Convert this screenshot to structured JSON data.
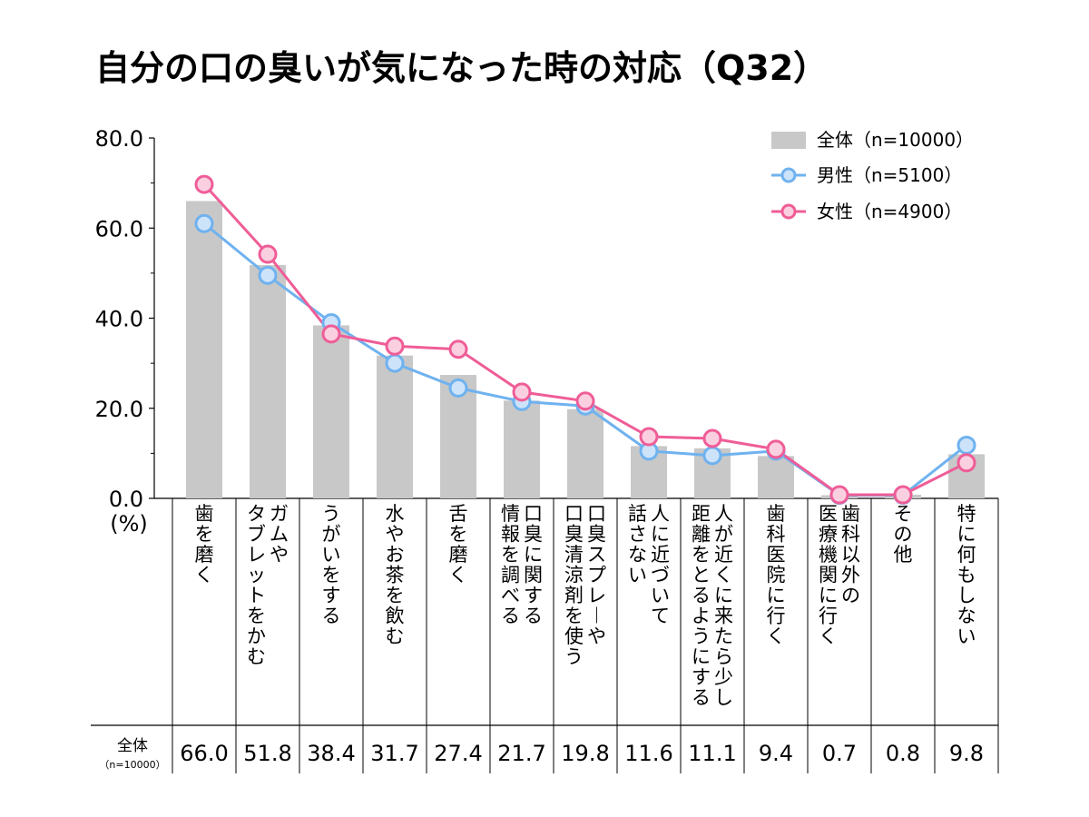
{
  "chart_data": {
    "type": "bar",
    "title": "自分の口の臭いが気になった時の対応（Q32）",
    "ylabel": "(%)",
    "ylim": [
      0,
      80
    ],
    "yticks": [
      "0.0",
      "20.0",
      "40.0",
      "60.0",
      "80.0"
    ],
    "categories": [
      "歯を磨く",
      "ガムやタブレットをかむ",
      "うがいをする",
      "水やお茶を飲む",
      "舌を磨く",
      "口臭に関する情報を調べる",
      "口臭スプレーや口臭清涼剤を使う",
      "人に近づいて話さない",
      "人が近くに来たら少し距離をとるようにする",
      "歯科医院に行く",
      "歯科以外の医療機関に行く",
      "その他",
      "特に何もしない"
    ],
    "category_lines": [
      [
        "歯を磨く"
      ],
      [
        "ガムや",
        "タブレットをかむ"
      ],
      [
        "うがいをする"
      ],
      [
        "水やお茶を飲む"
      ],
      [
        "舌を磨く"
      ],
      [
        "口臭に関する",
        "情報を調べる"
      ],
      [
        "口臭スプレーや",
        "口臭清涼剤を使う"
      ],
      [
        "人に近づいて",
        "話さない"
      ],
      [
        "人が近くに来たら少し",
        "距離をとるようにする"
      ],
      [
        "歯科医院に行く"
      ],
      [
        "歯科以外の",
        "医療機関に行く"
      ],
      [
        "その他"
      ],
      [
        "特に何もしない"
      ]
    ],
    "series": [
      {
        "name": "全体（n=10000）",
        "kind": "bar",
        "color": "#c8c8c8",
        "values": [
          66.0,
          51.8,
          38.4,
          31.7,
          27.4,
          21.7,
          19.8,
          11.6,
          11.1,
          9.4,
          0.7,
          0.8,
          9.8
        ]
      },
      {
        "name": "男性（n=5100）",
        "kind": "line",
        "color": "#6fb2ef",
        "fill": "#cde3fa",
        "values": [
          61.0,
          49.5,
          39.0,
          30.0,
          24.5,
          21.5,
          20.5,
          10.5,
          9.5,
          10.5,
          0.7,
          0.7,
          11.8
        ]
      },
      {
        "name": "女性（n=4900）",
        "kind": "line",
        "color": "#ef5d97",
        "fill": "#fad0e0",
        "values": [
          69.7,
          54.2,
          36.5,
          33.8,
          33.1,
          23.6,
          21.6,
          13.7,
          13.3,
          10.9,
          0.8,
          0.8,
          7.9
        ]
      }
    ],
    "legend_position": "top-right",
    "table": {
      "row_label": "全体",
      "row_sublabel": "（n=10000）",
      "values": [
        "66.0",
        "51.8",
        "38.4",
        "31.7",
        "27.4",
        "21.7",
        "19.8",
        "11.6",
        "11.1",
        "9.4",
        "0.7",
        "0.8",
        "9.8"
      ]
    }
  }
}
